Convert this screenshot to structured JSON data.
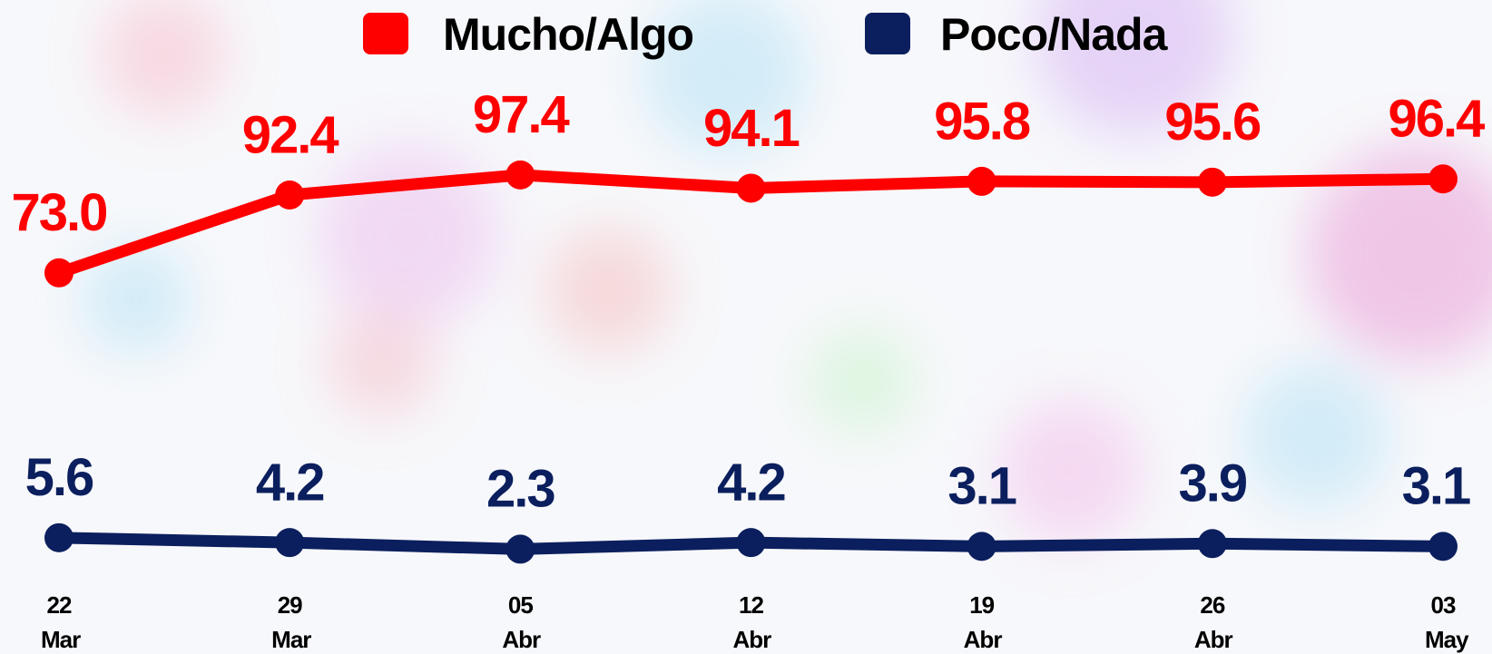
{
  "chart_data": {
    "type": "line",
    "categories": [
      "22 Mar",
      "29 Mar",
      "05 Abr",
      "12 Abr",
      "19 Abr",
      "26 Abr",
      "03 May"
    ],
    "series": [
      {
        "name": "Mucho/Algo",
        "color": "#ff0000",
        "values": [
          73.0,
          92.4,
          97.4,
          94.1,
          95.8,
          95.6,
          96.4
        ],
        "value_labels": [
          "73.0",
          "92.4",
          "97.4",
          "94.1",
          "95.8",
          "95.6",
          "96.4"
        ]
      },
      {
        "name": "Poco/Nada",
        "color": "#0b1f5e",
        "axis": "y2",
        "values": [
          5.6,
          4.2,
          2.3,
          4.2,
          3.1,
          3.9,
          3.1
        ],
        "value_labels": [
          "5.6",
          "4.2",
          "2.3",
          "4.2",
          "3.1",
          "3.9",
          "3.1"
        ]
      }
    ],
    "ylim": [
      -22,
      141
    ],
    "y2lim": [
      -28,
      161
    ],
    "grid": false
  }
}
